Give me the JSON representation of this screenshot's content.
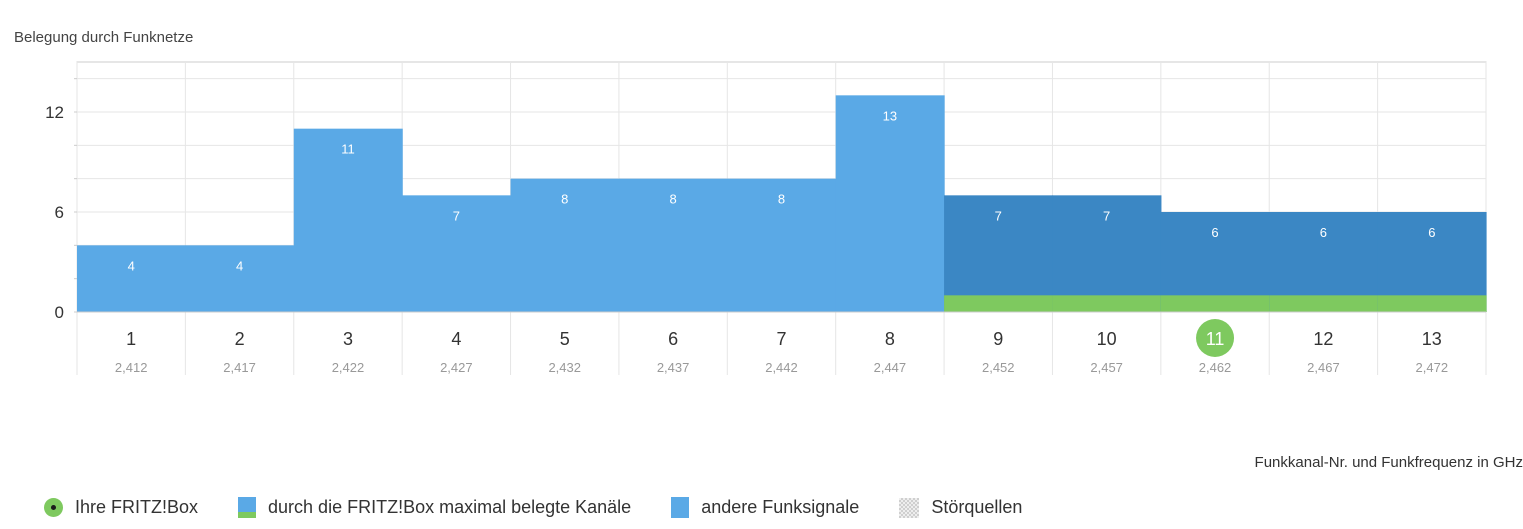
{
  "colors": {
    "other_signals": "#5aa9e6",
    "fritz_channels": "#3b87c4",
    "fritz_band": "#7ec95f",
    "own_channel": "#7ec95f",
    "grid": "#e6e6e6",
    "axis": "#cccccc"
  },
  "chart_data": {
    "type": "bar",
    "title": "Belegung durch Funknetze",
    "xlabel": "Funkkanal-Nr. und Funkfrequenz in GHz",
    "ylabel": "",
    "ylim": [
      0,
      15
    ],
    "yticks": [
      "0",
      "6",
      "12"
    ],
    "ytick_values": [
      0,
      6,
      12
    ],
    "categories": [
      "1",
      "2",
      "3",
      "4",
      "5",
      "6",
      "7",
      "8",
      "9",
      "10",
      "11",
      "12",
      "13"
    ],
    "frequencies": [
      "2,412",
      "2,417",
      "2,422",
      "2,427",
      "2,432",
      "2,437",
      "2,442",
      "2,447",
      "2,452",
      "2,457",
      "2,462",
      "2,467",
      "2,472"
    ],
    "values": [
      4,
      4,
      11,
      7,
      8,
      8,
      8,
      13,
      7,
      7,
      6,
      6,
      6
    ],
    "value_labels": [
      "4",
      "4",
      "11",
      "7",
      "8",
      "8",
      "8",
      "13",
      "7",
      "7",
      "6",
      "6",
      "6"
    ],
    "fritz_channels": [
      "9",
      "10",
      "11",
      "12",
      "13"
    ],
    "own_channel": "11",
    "fritz_band_value": 1
  },
  "legend": [
    {
      "icon": "fritzbox-dot-icon",
      "label": "Ihre FRITZ!Box"
    },
    {
      "icon": "fritzbox-channels-swatch",
      "label": "durch die FRITZ!Box maximal belegte Kanäle"
    },
    {
      "icon": "other-signals-swatch",
      "label": "andere Funksignale"
    },
    {
      "icon": "interference-swatch",
      "label": "Störquellen"
    }
  ]
}
